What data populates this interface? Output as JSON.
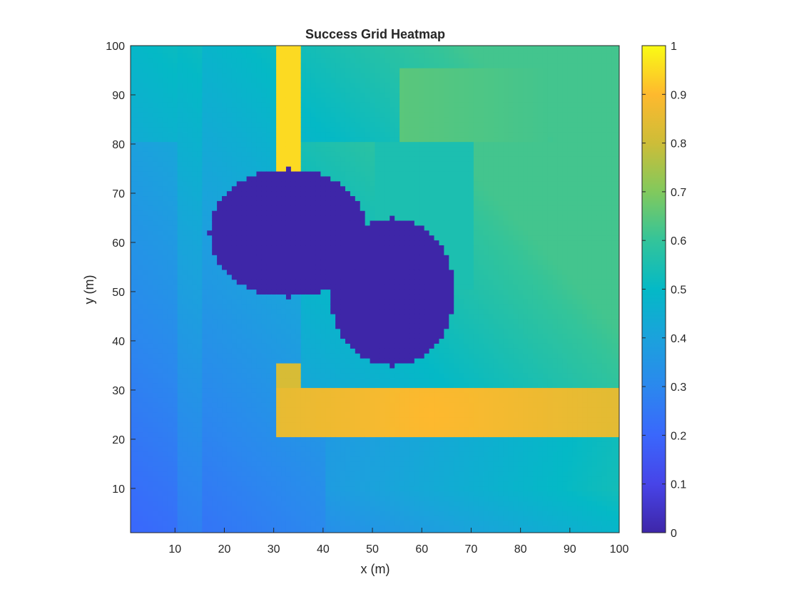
{
  "chart_data": {
    "type": "heatmap",
    "title": "Success Grid Heatmap",
    "xlabel": "x (m)",
    "ylabel": "y (m)",
    "xlim": [
      1,
      100
    ],
    "ylim": [
      1,
      100
    ],
    "xticks": [
      10,
      20,
      30,
      40,
      50,
      60,
      70,
      80,
      90,
      100
    ],
    "yticks": [
      10,
      20,
      30,
      40,
      50,
      60,
      70,
      80,
      90,
      100
    ],
    "colorbar": {
      "colormap": "parula",
      "limits": [
        0,
        1
      ],
      "ticks": [
        0,
        0.1,
        0.2,
        0.3,
        0.4,
        0.5,
        0.6,
        0.7,
        0.8,
        0.9,
        1
      ],
      "tick_labels": [
        "0",
        "0.1",
        "0.2",
        "0.3",
        "0.4",
        "0.5",
        "0.6",
        "0.7",
        "0.8",
        "0.9",
        "1"
      ],
      "placement": "right"
    },
    "grid": false,
    "value_description": {
      "background_gradient": "values increase from about 0.2 at bottom-left (x=1,y=1) to about 0.6 at top-right",
      "zero_region": "blob of value 0 covering roughly x 19-66, y 34-75",
      "high_corridors": [
        {
          "x_range": [
            31,
            35
          ],
          "y_range": [
            75,
            100
          ],
          "value": 0.95
        },
        {
          "x_range": [
            31,
            100
          ],
          "y_range": [
            21,
            30
          ],
          "value": 0.85
        }
      ],
      "plateaus": [
        {
          "x_range": [
            56,
            85
          ],
          "y_range": [
            81,
            95
          ],
          "value": 0.65
        },
        {
          "x_range": [
            51,
            70
          ],
          "y_range": [
            51,
            80
          ],
          "value": 0.55
        }
      ]
    }
  }
}
